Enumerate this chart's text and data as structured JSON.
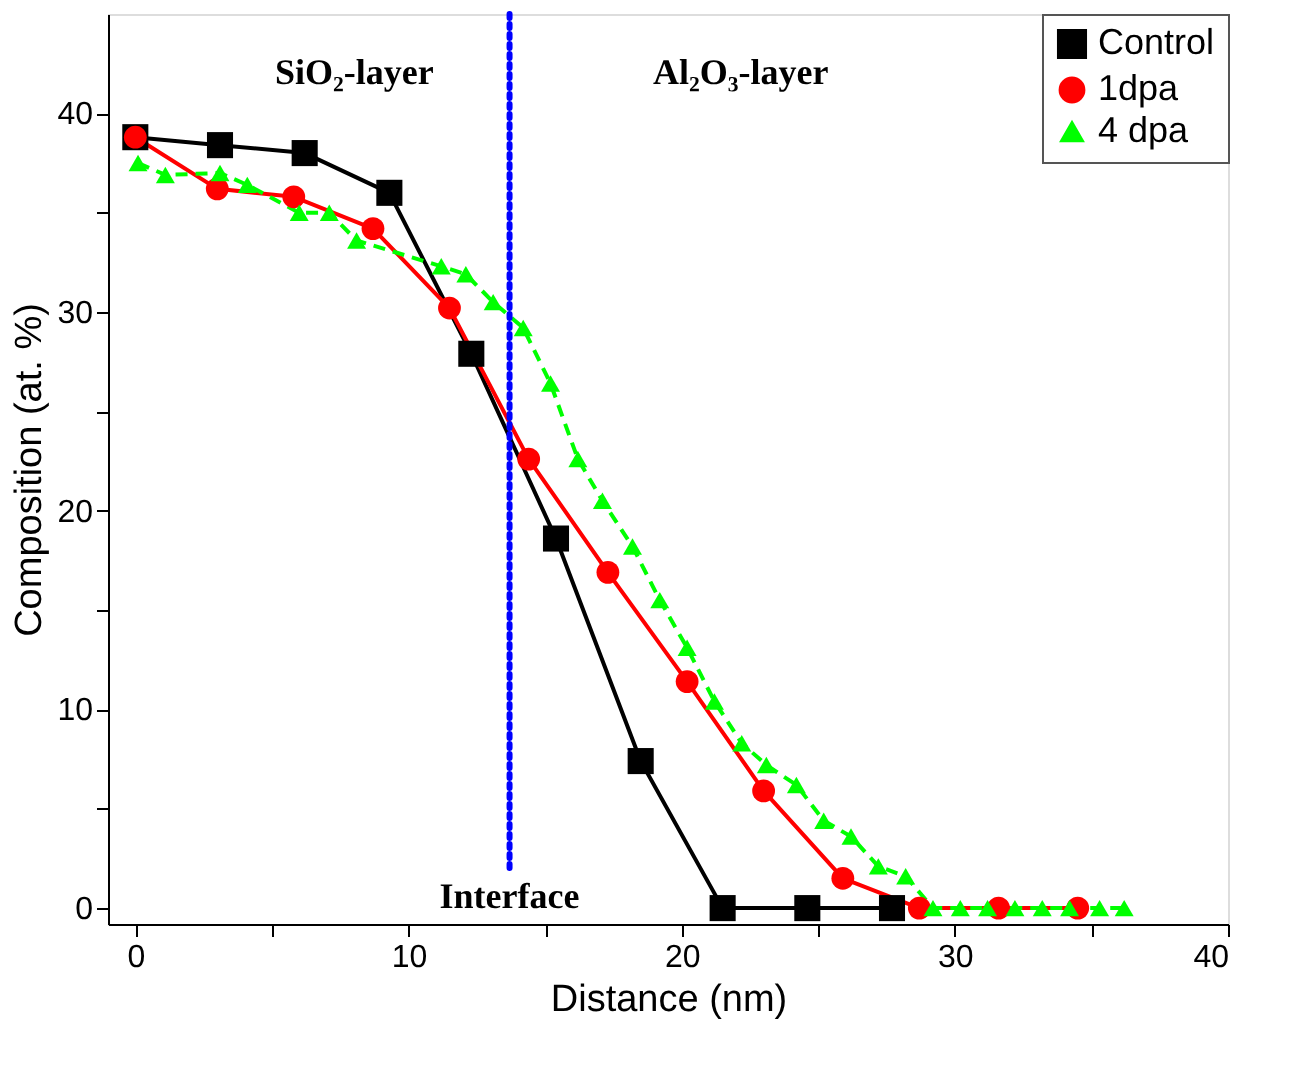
{
  "chart_data": {
    "type": "line",
    "xlabel": "Distance (nm)",
    "ylabel": "Composition (at. %)",
    "xlim": [
      -1,
      40
    ],
    "ylim": [
      -0.8,
      45
    ],
    "xticks": [
      0,
      {
        "value": 5,
        "label": null
      },
      10,
      {
        "value": 15,
        "label": null
      },
      20,
      {
        "value": 25,
        "label": null
      },
      30,
      {
        "value": 35,
        "label": null
      },
      40
    ],
    "yticks": [
      0,
      {
        "value": 5,
        "label": null
      },
      10,
      {
        "value": 15,
        "label": null
      },
      20,
      {
        "value": 25,
        "label": null
      },
      30,
      {
        "value": 35,
        "label": null
      },
      40
    ],
    "grid": false,
    "legend": "top right",
    "annotations": [
      "SiO₂-layer",
      "Al₂O₃-layer"
    ],
    "ref_lines": [
      {
        "axis": "x",
        "value": 13.7,
        "label": "Interface",
        "color": "#0000ff",
        "line_style": "dotted"
      }
    ],
    "series": [
      {
        "name": "Control",
        "color": "#000000",
        "marker": "square",
        "line_style": "solid",
        "x": [
          0,
          3.1,
          6.2,
          9.3,
          12.3,
          15.4,
          18.5,
          21.5,
          24.6,
          27.7
        ],
        "values": [
          38.8,
          38.4,
          38.0,
          36.0,
          27.9,
          18.6,
          7.4,
          0,
          0,
          0
        ]
      },
      {
        "name": "1dpa",
        "color": "#ff0000",
        "marker": "circle",
        "line_style": "solid",
        "x": [
          0,
          3.0,
          5.8,
          8.7,
          11.5,
          14.4,
          17.3,
          20.2,
          23.0,
          25.9,
          28.7,
          31.6,
          34.5
        ],
        "values": [
          38.8,
          36.2,
          35.8,
          34.2,
          30.2,
          22.6,
          16.9,
          11.4,
          5.9,
          1.5,
          0,
          0,
          0
        ]
      },
      {
        "name": "4 dpa",
        "color": "#00ff00",
        "marker": "triangle",
        "line_style": "dashed",
        "x": [
          0.1,
          1.1,
          3.1,
          4.1,
          6.0,
          7.1,
          8.1,
          11.2,
          12.1,
          13.1,
          14.2,
          15.2,
          16.2,
          17.1,
          18.2,
          19.2,
          20.2,
          21.2,
          22.2,
          23.1,
          24.2,
          25.2,
          26.2,
          27.2,
          28.2,
          29.2,
          30.2,
          31.2,
          32.2,
          33.2,
          34.2,
          35.3,
          36.2
        ],
        "values": [
          37.5,
          36.9,
          37.0,
          36.4,
          35.0,
          35.0,
          33.6,
          32.3,
          31.9,
          30.5,
          29.2,
          26.4,
          22.6,
          20.5,
          18.2,
          15.5,
          13.1,
          10.4,
          8.3,
          7.2,
          6.2,
          4.4,
          3.6,
          2.1,
          1.6,
          0,
          0,
          0,
          0,
          0,
          0,
          0,
          0
        ]
      }
    ]
  }
}
